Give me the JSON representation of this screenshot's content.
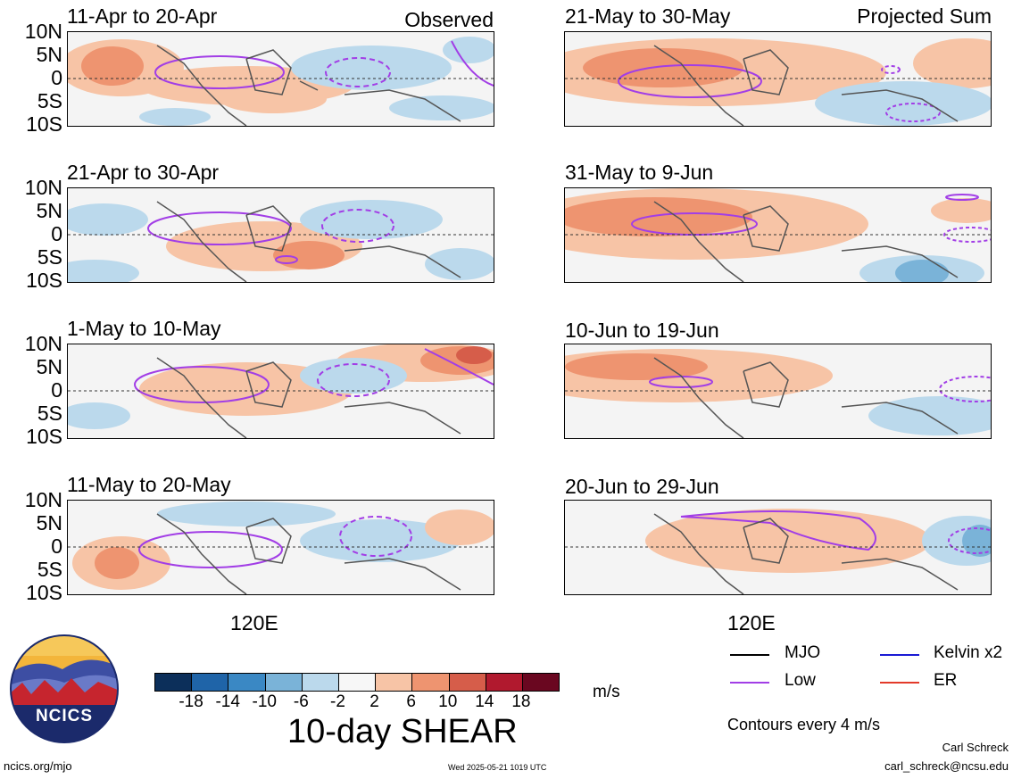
{
  "panels": {
    "left": [
      {
        "title": "11-Apr to 20-Apr",
        "corner": "Observed"
      },
      {
        "title": "21-Apr to 30-Apr",
        "corner": ""
      },
      {
        "title": "1-May to 10-May",
        "corner": ""
      },
      {
        "title": "11-May to 20-May",
        "corner": ""
      }
    ],
    "right": [
      {
        "title": "21-May to 30-May",
        "corner": "Projected Sum"
      },
      {
        "title": "31-May to 9-Jun",
        "corner": ""
      },
      {
        "title": "10-Jun to 19-Jun",
        "corner": ""
      },
      {
        "title": "20-Jun to 29-Jun",
        "corner": ""
      }
    ]
  },
  "lat_ticks": [
    "10N",
    "5N",
    "0",
    "5S",
    "10S"
  ],
  "lon_tick": "120E",
  "legend": {
    "mjo": "MJO",
    "low": "Low",
    "kelvin": "Kelvin x2",
    "er": "ER",
    "colors": {
      "mjo": "#000000",
      "low": "#a23ee6",
      "kelvin": "#1a1ad4",
      "er": "#e33a2a"
    },
    "contour_note": "Contours every 4 m/s"
  },
  "colorbar": {
    "labels": [
      "-18",
      "-14",
      "-10",
      "-6",
      "-2",
      "2",
      "6",
      "10",
      "14",
      "18"
    ],
    "colors": [
      "#0c2f5a",
      "#1f64a8",
      "#3a88c4",
      "#7ab3d8",
      "#bbd9ec",
      "#f7f7f7",
      "#f7c4a6",
      "#ee9470",
      "#d65d4a",
      "#b1192e",
      "#6a0720"
    ],
    "units": "m/s",
    "title": "10-day SHEAR"
  },
  "logo": {
    "text": "NCICS"
  },
  "footer": {
    "url": "ncics.org/mjo",
    "timestamp": "Wed 2025-05-21 1019 UTC",
    "author": "Carl Schreck",
    "email": "carl_schreck@ncsu.edu"
  }
}
